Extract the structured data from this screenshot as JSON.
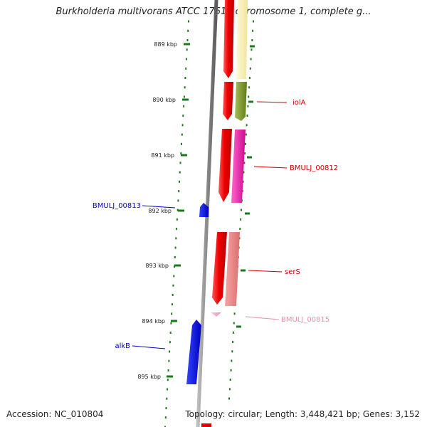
{
  "viewer": {
    "title": "Burkholderia multivorans ATCC 17616 chromosome 1, complete g...",
    "accession": "Accession: NC_010804",
    "topology": "Topology: circular; Length: 3,448,421 bp; Genes: 3,152"
  },
  "scale": {
    "ticks": [
      "889 kbp",
      "890 kbp",
      "891 kbp",
      "892 kbp",
      "893 kbp",
      "894 kbp",
      "895 kbp"
    ]
  },
  "genes": {
    "labels": {
      "iolA": "iolA",
      "bmulj_00812": "BMULJ_00812",
      "bmulj_00813": "BMULJ_00813",
      "serS": "serS",
      "bmulj_00815": "BMULJ_00815",
      "alkB": "alkB"
    },
    "colors": {
      "iolA": "#cc0000",
      "bmulj_00812": "#cc0000",
      "bmulj_00813": "#0000cc",
      "serS": "#cc0000",
      "bmulj_00815": "#e88fb0",
      "alkB": "#0000cc"
    }
  }
}
